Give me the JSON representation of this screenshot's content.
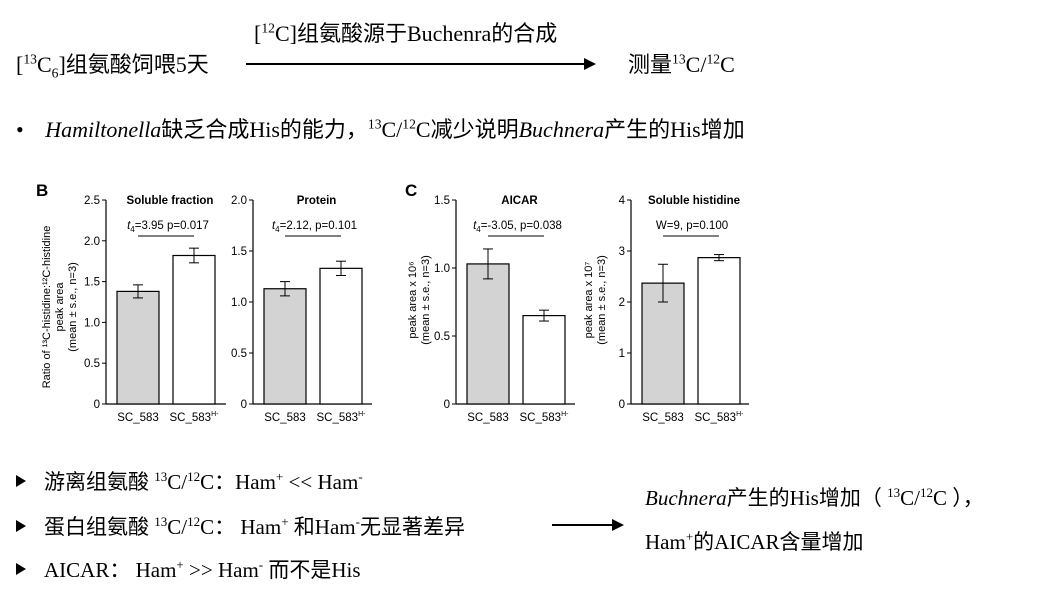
{
  "header": {
    "arrow_label": {
      "pre": "[",
      "sup": "12",
      "post": "C]组氨酸源于Buchenra的合成"
    },
    "feed": {
      "pre": "[",
      "sup": "13",
      "mid": "C",
      "sub": "6",
      "post": "]组氨酸饲喂5天"
    },
    "measure": {
      "pre": "测量",
      "sup1": "13",
      "mid": "C/",
      "sup2": "12",
      "post": "C"
    }
  },
  "bullet": {
    "dot": "•",
    "italic1": "Hamiltonella",
    "text1": "缺乏合成His的能力，",
    "sup1": "13",
    "text2": "C/",
    "sup2": "12",
    "text3": "C减少说明",
    "italic2": "Buchnera",
    "text4": "产生的His增加"
  },
  "findings": [
    {
      "a": "游离组氨酸 ",
      "s1": "13",
      "b": "C/",
      "s2": "12",
      "c": "C：Ham",
      "s3": "+",
      "d": " << Ham",
      "s4": "-",
      "e": ""
    },
    {
      "a": "蛋白组氨酸 ",
      "s1": "13",
      "b": "C/",
      "s2": "12",
      "c": "C： Ham",
      "s3": "+",
      "d": " 和Ham",
      "s4": "-",
      "e": "无显著差异"
    },
    {
      "a": "AICAR： Ham",
      "s1": "+",
      "b": " >> Ham",
      "s2": "-",
      "c": "  而不是His",
      "s3": "",
      "d": "",
      "s4": "",
      "e": ""
    }
  ],
  "conclusion": {
    "line1": {
      "italic": "Buchnera",
      "a": "产生的His增加（ ",
      "s1": "13",
      "b": "C/",
      "s2": "12",
      "c": "C ），"
    },
    "line2": {
      "a": "Ham",
      "s": "+",
      "b": "的AICAR含量增加"
    }
  },
  "panel_labels": {
    "b": "B",
    "c": "C"
  },
  "ylabels": {
    "b_line1": "Ratio of  ¹³C-histidine:¹²C-histidine",
    "b_line2": "peak area",
    "b_line3": "(mean ± s.e., n=3)",
    "c1_line1": "peak area x 10⁶",
    "c1_line2": "(mean ± s.e., n=3)",
    "c2_line1": "peak area x 10⁷",
    "c2_line2": "(mean ± s.e., n=3)"
  },
  "chart_data": [
    {
      "type": "bar",
      "title": "Soluble fraction",
      "categories": [
        "SC_583",
        "SC_583H-"
      ],
      "values": [
        1.38,
        1.82
      ],
      "errors": [
        0.08,
        0.09
      ],
      "ylim": [
        0,
        2.5
      ],
      "yticks": [
        "0",
        "0.5",
        "1.0",
        "1.5",
        "2.0",
        "2.5"
      ],
      "stat": "t4=3.95 p=0.017",
      "colors": [
        "#d3d3d3",
        "#ffffff"
      ]
    },
    {
      "type": "bar",
      "title": "Protein",
      "categories": [
        "SC_583",
        "SC_583H-"
      ],
      "values": [
        1.13,
        1.33
      ],
      "errors": [
        0.07,
        0.07
      ],
      "ylim": [
        0,
        2.0
      ],
      "yticks": [
        "0",
        "0.5",
        "1.0",
        "1.5",
        "2.0"
      ],
      "stat": "t4=2.12, p=0.101",
      "colors": [
        "#d3d3d3",
        "#ffffff"
      ]
    },
    {
      "type": "bar",
      "title": "AICAR",
      "categories": [
        "SC_583",
        "SC_583H-"
      ],
      "values": [
        1.03,
        0.65
      ],
      "errors": [
        0.11,
        0.04
      ],
      "ylim": [
        0,
        1.5
      ],
      "yticks": [
        "0",
        "0.5",
        "1.0",
        "1.5"
      ],
      "stat": "t4=-3.05, p=0.038",
      "colors": [
        "#d3d3d3",
        "#ffffff"
      ]
    },
    {
      "type": "bar",
      "title": "Soluble histidine",
      "categories": [
        "SC_583",
        "SC_583H-"
      ],
      "values": [
        2.37,
        2.87
      ],
      "errors": [
        0.37,
        0.06
      ],
      "ylim": [
        0,
        4
      ],
      "yticks": [
        "0",
        "1",
        "2",
        "3",
        "4"
      ],
      "stat": "W=9, p=0.100",
      "colors": [
        "#d3d3d3",
        "#ffffff"
      ]
    }
  ]
}
